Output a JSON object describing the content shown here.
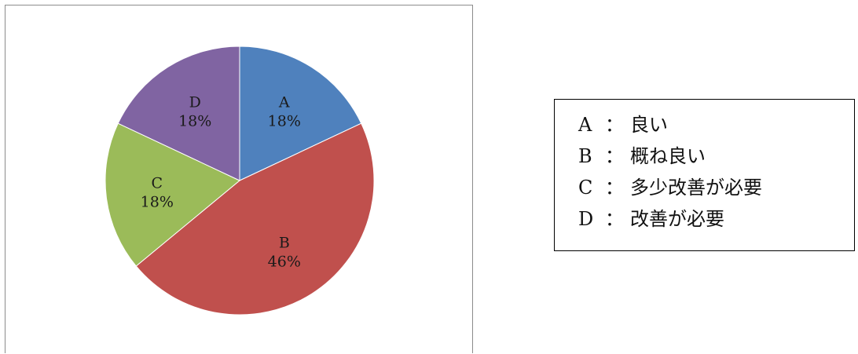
{
  "chart_data": {
    "type": "pie",
    "start_angle_deg": 0,
    "direction": "clockwise",
    "slices": [
      {
        "label": "A",
        "percent_label": "18%",
        "value": 18,
        "color": "#4f81bd"
      },
      {
        "label": "B",
        "percent_label": "46%",
        "value": 46,
        "color": "#c0504d"
      },
      {
        "label": "C",
        "percent_label": "18%",
        "value": 18,
        "color": "#9bbb59"
      },
      {
        "label": "D",
        "percent_label": "18%",
        "value": 18,
        "color": "#8064a2"
      }
    ]
  },
  "legend": {
    "separator": "：",
    "items": [
      {
        "key": "A",
        "text": "良い"
      },
      {
        "key": "B",
        "text": "概ね良い"
      },
      {
        "key": "C",
        "text": "多少改善が必要"
      },
      {
        "key": "D",
        "text": "改善が必要"
      }
    ]
  }
}
